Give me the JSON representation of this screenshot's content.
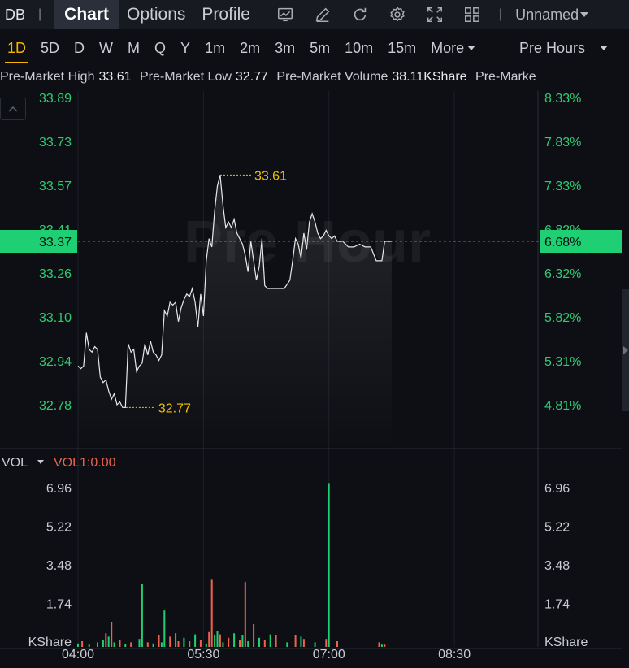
{
  "toolbar": {
    "ticker": "DB",
    "separator": "|",
    "tabs": [
      "Chart",
      "Options",
      "Profile"
    ],
    "icons": [
      "chart-line-icon",
      "pencil-icon",
      "refresh-icon",
      "gear-icon",
      "fullscreen-icon",
      "grid-layout-icon"
    ],
    "separator2": "|",
    "layout_name": "Unnamed"
  },
  "timeframes": {
    "items": [
      "1D",
      "5D",
      "D",
      "W",
      "M",
      "Q",
      "Y",
      "1m",
      "2m",
      "3m",
      "5m",
      "10m",
      "15m"
    ],
    "active": "1D",
    "more_label": "More",
    "session_label": "Pre Hours"
  },
  "info": {
    "high_label": "Pre-Market High",
    "high_value": "33.61",
    "low_label": "Pre-Market Low",
    "low_value": "32.77",
    "volume_label": "Pre-Market Volume",
    "volume_value": "38.11KShare",
    "truncated_label": "Pre-Marke"
  },
  "chart_data": {
    "type": "line",
    "watermark": "Pre Hour",
    "colors": {
      "line": "#e8e8ea",
      "up": "#1fcf73",
      "down": "#f0614b",
      "grid": "#1c2027",
      "accent_text": "#2ecc71",
      "highlight": "#f2c200"
    },
    "y_ticks": [
      "33.89",
      "33.73",
      "33.57",
      "33.41",
      "33.26",
      "33.10",
      "32.94",
      "32.78"
    ],
    "pct_ticks": [
      "8.33%",
      "7.83%",
      "7.33%",
      "6.82%",
      "6.32%",
      "5.82%",
      "5.31%",
      "4.81%"
    ],
    "ylim": [
      32.78,
      33.89
    ],
    "current_price": "33.37",
    "current_pct": "6.68%",
    "high_marker": "33.61",
    "low_marker": "32.77",
    "x_ticks": [
      "04:00",
      "05:30",
      "07:00",
      "08:30"
    ],
    "xlim_minutes": [
      0,
      330
    ],
    "x_tick_minutes": [
      0,
      90,
      180,
      270
    ],
    "last_minute": 225,
    "prices": [
      [
        0,
        32.92
      ],
      [
        2,
        32.91
      ],
      [
        4,
        32.92
      ],
      [
        6,
        33.04
      ],
      [
        8,
        32.98
      ],
      [
        10,
        32.97
      ],
      [
        12,
        32.99
      ],
      [
        14,
        32.98
      ],
      [
        16,
        32.88
      ],
      [
        18,
        32.86
      ],
      [
        20,
        32.87
      ],
      [
        22,
        32.83
      ],
      [
        24,
        32.8
      ],
      [
        26,
        32.82
      ],
      [
        28,
        32.78
      ],
      [
        30,
        32.79
      ],
      [
        32,
        32.77
      ],
      [
        34,
        32.77
      ],
      [
        36,
        33.0
      ],
      [
        38,
        32.97
      ],
      [
        40,
        32.98
      ],
      [
        42,
        32.9
      ],
      [
        44,
        32.92
      ],
      [
        46,
        32.93
      ],
      [
        48,
        33.0
      ],
      [
        50,
        32.96
      ],
      [
        52,
        33.01
      ],
      [
        54,
        32.97
      ],
      [
        56,
        32.96
      ],
      [
        58,
        32.94
      ],
      [
        60,
        32.96
      ],
      [
        62,
        33.12
      ],
      [
        64,
        33.1
      ],
      [
        66,
        33.15
      ],
      [
        68,
        33.14
      ],
      [
        70,
        33.15
      ],
      [
        72,
        33.08
      ],
      [
        74,
        33.13
      ],
      [
        76,
        33.16
      ],
      [
        78,
        33.18
      ],
      [
        80,
        33.17
      ],
      [
        82,
        33.2
      ],
      [
        84,
        33.15
      ],
      [
        86,
        33.06
      ],
      [
        88,
        33.18
      ],
      [
        90,
        33.1
      ],
      [
        92,
        33.3
      ],
      [
        94,
        33.38
      ],
      [
        96,
        33.35
      ],
      [
        98,
        33.48
      ],
      [
        100,
        33.57
      ],
      [
        102,
        33.61
      ],
      [
        104,
        33.5
      ],
      [
        106,
        33.42
      ],
      [
        108,
        33.44
      ],
      [
        110,
        33.42
      ],
      [
        112,
        33.45
      ],
      [
        114,
        33.4
      ],
      [
        116,
        33.38
      ],
      [
        118,
        33.36
      ],
      [
        120,
        33.32
      ],
      [
        122,
        33.26
      ],
      [
        124,
        33.37
      ],
      [
        126,
        33.3
      ],
      [
        128,
        33.23
      ],
      [
        130,
        33.28
      ],
      [
        132,
        33.38
      ],
      [
        134,
        33.21
      ],
      [
        136,
        33.2
      ],
      [
        140,
        33.2
      ],
      [
        144,
        33.2
      ],
      [
        148,
        33.2
      ],
      [
        152,
        33.23
      ],
      [
        154,
        33.3
      ],
      [
        156,
        33.38
      ],
      [
        158,
        33.36
      ],
      [
        160,
        33.31
      ],
      [
        162,
        33.4
      ],
      [
        164,
        33.34
      ],
      [
        166,
        33.44
      ],
      [
        168,
        33.47
      ],
      [
        170,
        33.44
      ],
      [
        172,
        33.4
      ],
      [
        174,
        33.38
      ],
      [
        176,
        33.39
      ],
      [
        178,
        33.41
      ],
      [
        180,
        33.39
      ],
      [
        182,
        33.38
      ],
      [
        184,
        33.39
      ],
      [
        186,
        33.37
      ],
      [
        190,
        33.37
      ],
      [
        194,
        33.35
      ],
      [
        198,
        33.35
      ],
      [
        202,
        33.36
      ],
      [
        206,
        33.35
      ],
      [
        210,
        33.35
      ],
      [
        214,
        33.3
      ],
      [
        218,
        33.3
      ],
      [
        220,
        33.37
      ],
      [
        225,
        33.37
      ]
    ],
    "volume": {
      "label": "VOL",
      "indicator": "VOL1:0.00",
      "unit_label": "KShare",
      "y_ticks": [
        "6.96",
        "5.22",
        "3.48",
        "1.74"
      ],
      "ylim": [
        0,
        8.0
      ],
      "bars": [
        [
          0,
          0.15,
          "up"
        ],
        [
          3,
          0.25,
          "down"
        ],
        [
          8,
          0.1,
          "up"
        ],
        [
          14,
          0.2,
          "down"
        ],
        [
          18,
          0.3,
          "up"
        ],
        [
          20,
          0.6,
          "down"
        ],
        [
          22,
          0.45,
          "up"
        ],
        [
          24,
          1.1,
          "down"
        ],
        [
          26,
          0.2,
          "up"
        ],
        [
          30,
          0.3,
          "down"
        ],
        [
          34,
          0.12,
          "up"
        ],
        [
          38,
          0.2,
          "down"
        ],
        [
          44,
          0.35,
          "up"
        ],
        [
          46,
          2.75,
          "up"
        ],
        [
          50,
          0.2,
          "down"
        ],
        [
          54,
          0.15,
          "up"
        ],
        [
          58,
          0.5,
          "down"
        ],
        [
          60,
          0.2,
          "up"
        ],
        [
          62,
          1.6,
          "up"
        ],
        [
          66,
          0.45,
          "down"
        ],
        [
          70,
          0.6,
          "up"
        ],
        [
          72,
          0.25,
          "down"
        ],
        [
          76,
          0.4,
          "up"
        ],
        [
          80,
          0.25,
          "down"
        ],
        [
          84,
          0.55,
          "up"
        ],
        [
          88,
          0.3,
          "down"
        ],
        [
          92,
          0.15,
          "up"
        ],
        [
          94,
          0.65,
          "down"
        ],
        [
          96,
          2.95,
          "down"
        ],
        [
          98,
          0.5,
          "up"
        ],
        [
          100,
          0.7,
          "up"
        ],
        [
          102,
          0.55,
          "down"
        ],
        [
          104,
          0.2,
          "up"
        ],
        [
          108,
          0.4,
          "down"
        ],
        [
          112,
          0.6,
          "up"
        ],
        [
          116,
          0.3,
          "down"
        ],
        [
          118,
          0.5,
          "up"
        ],
        [
          120,
          2.85,
          "down"
        ],
        [
          122,
          0.25,
          "up"
        ],
        [
          126,
          1.0,
          "down"
        ],
        [
          130,
          0.4,
          "up"
        ],
        [
          134,
          0.3,
          "down"
        ],
        [
          138,
          0.55,
          "up"
        ],
        [
          142,
          0.5,
          "down"
        ],
        [
          150,
          0.2,
          "up"
        ],
        [
          156,
          0.5,
          "down"
        ],
        [
          160,
          0.45,
          "up"
        ],
        [
          162,
          0.35,
          "down"
        ],
        [
          170,
          0.2,
          "up"
        ],
        [
          178,
          0.35,
          "down"
        ],
        [
          180,
          7.2,
          "up"
        ],
        [
          186,
          0.25,
          "down"
        ],
        [
          216,
          0.2,
          "down"
        ],
        [
          218,
          0.1,
          "up"
        ],
        [
          220,
          0.1,
          "down"
        ]
      ]
    }
  }
}
